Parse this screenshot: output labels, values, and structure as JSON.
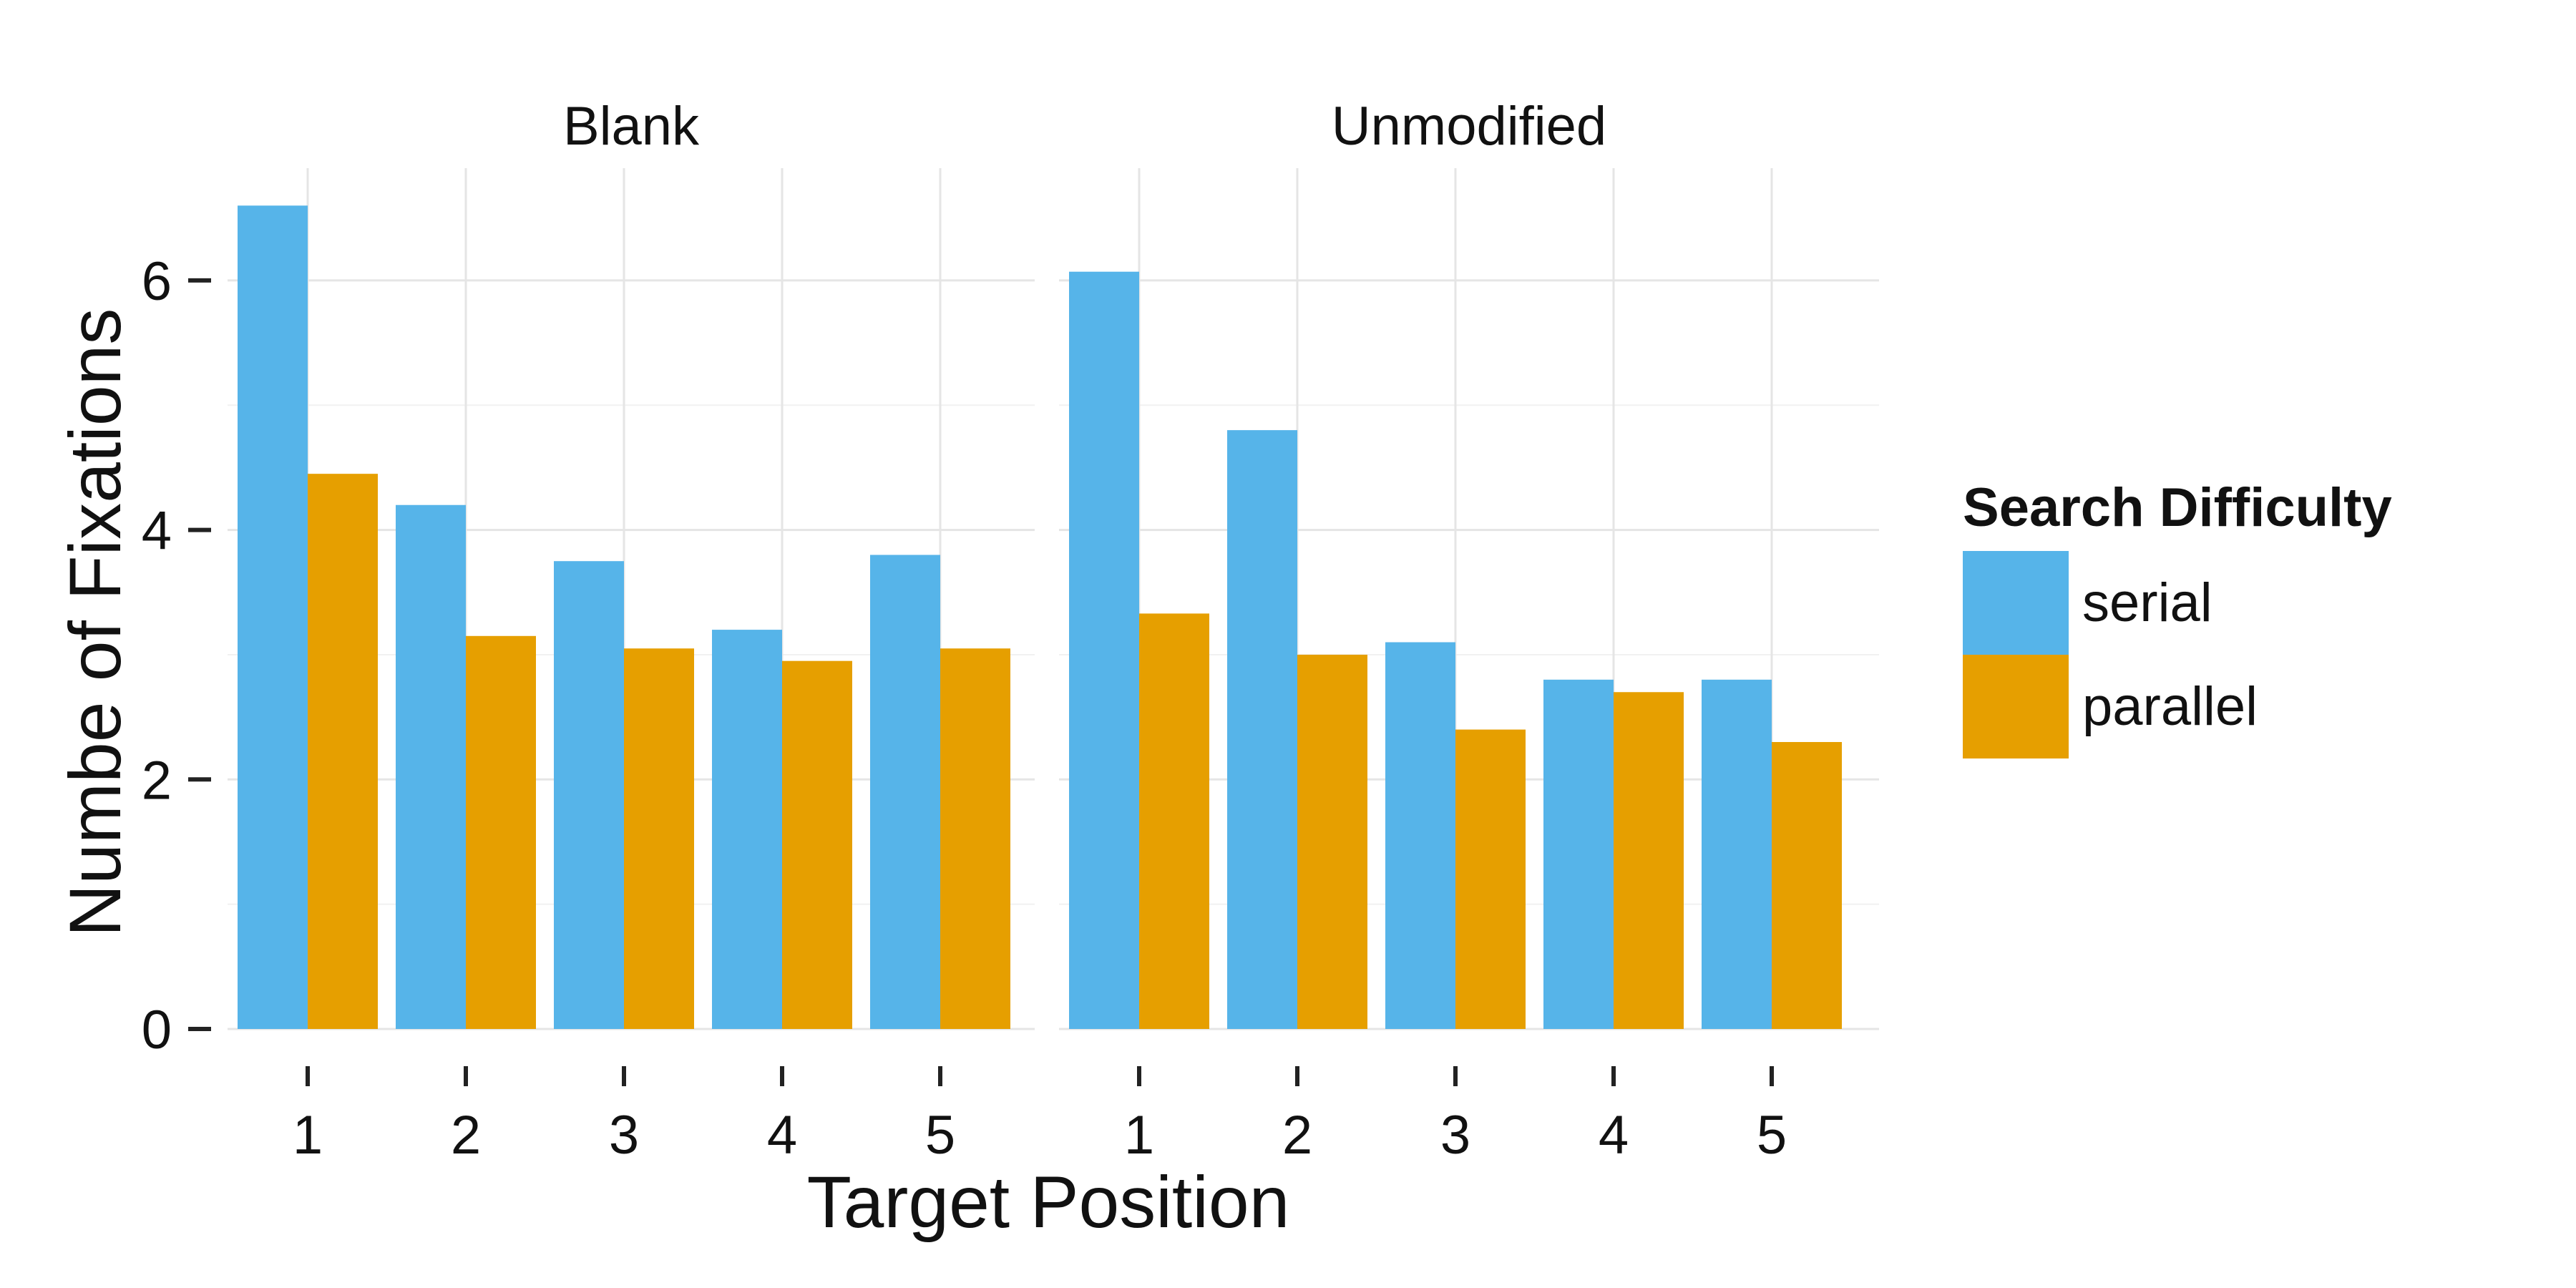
{
  "chart_data": {
    "type": "bar",
    "xlabel": "Target Position",
    "ylabel": "Numbe of Fixations",
    "ylim": [
      0,
      6.9
    ],
    "y_ticks": [
      0,
      2,
      4,
      6
    ],
    "y_tick_labels": [
      "0",
      "2",
      "4",
      "6"
    ],
    "categories": [
      "1",
      "2",
      "3",
      "4",
      "5"
    ],
    "grid": true,
    "legend": {
      "title": "Search Difficulty",
      "position": "right",
      "entries": [
        "serial",
        "parallel"
      ]
    },
    "colors": {
      "serial": "#56B4E9",
      "parallel": "#E69F00",
      "grid": "#E5E5E5",
      "axis": "#222222"
    },
    "panels": [
      {
        "title": "Blank",
        "series": [
          {
            "name": "serial",
            "values": [
              6.6,
              4.2,
              3.75,
              3.2,
              3.8
            ]
          },
          {
            "name": "parallel",
            "values": [
              4.45,
              3.15,
              3.05,
              2.95,
              3.05
            ]
          }
        ]
      },
      {
        "title": "Unmodified",
        "series": [
          {
            "name": "serial",
            "values": [
              6.07,
              4.8,
              3.1,
              2.8,
              2.8
            ]
          },
          {
            "name": "parallel",
            "values": [
              3.33,
              3.0,
              2.4,
              2.7,
              2.3
            ]
          }
        ]
      }
    ]
  }
}
